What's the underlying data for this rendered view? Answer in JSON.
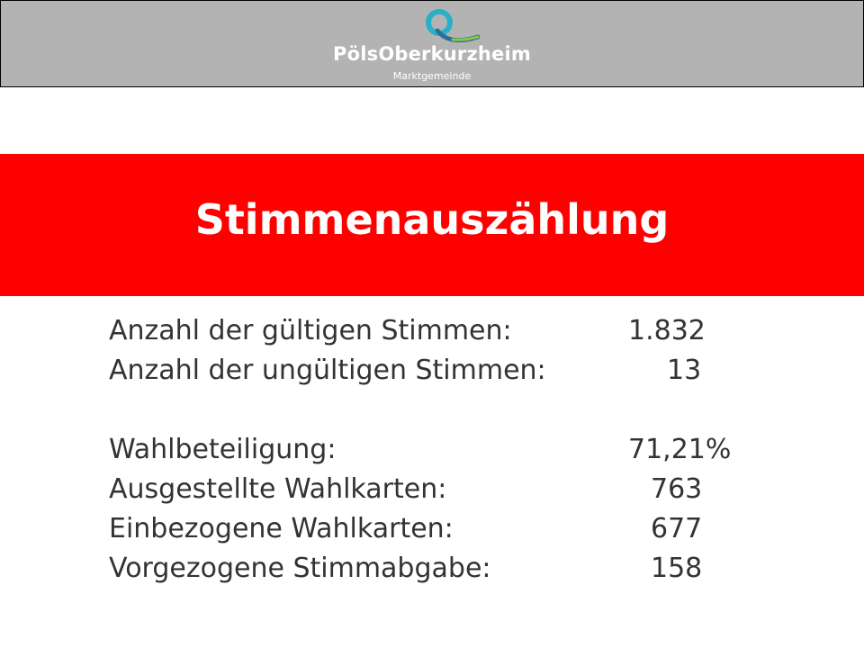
{
  "header": {
    "logo_name": "PölsOberkurzheim",
    "logo_sub": "Marktgemeinde",
    "background_color": "#b3b3b3"
  },
  "title_band": {
    "title": "Stimmenauszählung",
    "color": "#ff0000"
  },
  "stats": {
    "rows": [
      {
        "label": "Anzahl der gültigen Stimmen:",
        "value": "1.832"
      },
      {
        "label": "Anzahl der ungültigen Stimmen:",
        "value": "13"
      },
      {
        "label": "Wahlbeteiligung:",
        "value": "71,21%"
      },
      {
        "label": "Ausgestellte Wahlkarten:",
        "value": "763"
      },
      {
        "label": "Einbezogene Wahlkarten:",
        "value": "677"
      },
      {
        "label": "Vorgezogene Stimmabgabe:",
        "value": "158"
      }
    ]
  }
}
